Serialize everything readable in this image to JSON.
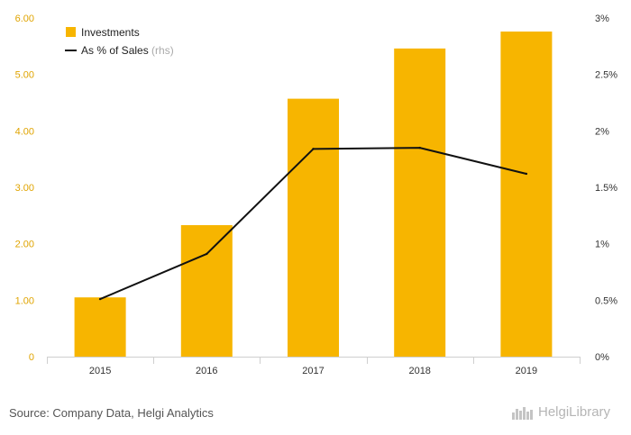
{
  "chart_data": {
    "type": "bar",
    "categories": [
      "2015",
      "2016",
      "2017",
      "2018",
      "2019"
    ],
    "series": [
      {
        "name": "Investments",
        "type": "bar",
        "axis": "left",
        "values": [
          1.05,
          2.33,
          4.57,
          5.46,
          5.76
        ],
        "color": "#F7B500"
      },
      {
        "name": "As % of Sales",
        "type": "line",
        "axis": "right",
        "values": [
          0.51,
          0.91,
          1.84,
          1.85,
          1.62
        ],
        "color": "#111111"
      }
    ],
    "y_left": {
      "ylim": [
        0,
        6
      ],
      "ticks": [
        "0",
        "1.00",
        "2.00",
        "3.00",
        "4.00",
        "5.00",
        "6.00"
      ],
      "tick_color": "#E0A400"
    },
    "y_right": {
      "ylim": [
        0,
        3
      ],
      "ticks": [
        "0%",
        "0.5%",
        "1%",
        "1.5%",
        "2%",
        "2.5%",
        "3%"
      ]
    },
    "legend": {
      "position": "top-left",
      "rhs_suffix": "(rhs)"
    },
    "grid": false
  },
  "footer": {
    "source": "Source: Company Data, Helgi Analytics",
    "logo": "HelgiLibrary"
  }
}
